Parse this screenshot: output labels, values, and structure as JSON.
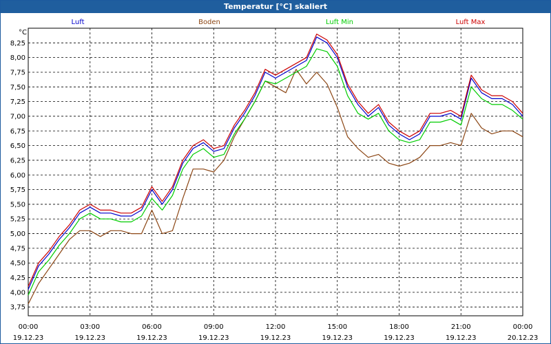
{
  "window": {
    "title": "Temperatur [°C] skaliert"
  },
  "chart_data": {
    "type": "line",
    "title": "Temperatur [°C] skaliert",
    "ylabel": "°C",
    "xlabel": "",
    "ylim": [
      3.6,
      8.5
    ],
    "xlim": [
      0,
      24
    ],
    "grid": true,
    "legend_position": "top",
    "y_ticks": [
      "3,75",
      "4,00",
      "4,25",
      "4,50",
      "4,75",
      "5,00",
      "5,25",
      "5,50",
      "5,75",
      "6,00",
      "6,25",
      "6,50",
      "6,75",
      "7,00",
      "7,25",
      "7,50",
      "7,75",
      "8,00",
      "8,25"
    ],
    "y_tick_values": [
      3.75,
      4.0,
      4.25,
      4.5,
      4.75,
      5.0,
      5.25,
      5.5,
      5.75,
      6.0,
      6.25,
      6.5,
      6.75,
      7.0,
      7.25,
      7.5,
      7.75,
      8.0,
      8.25
    ],
    "x_ticks": [
      {
        "time": "00:00",
        "date": "19.12.23",
        "hour": 0
      },
      {
        "time": "03:00",
        "date": "19.12.23",
        "hour": 3
      },
      {
        "time": "06:00",
        "date": "19.12.23",
        "hour": 6
      },
      {
        "time": "09:00",
        "date": "19.12.23",
        "hour": 9
      },
      {
        "time": "12:00",
        "date": "19.12.23",
        "hour": 12
      },
      {
        "time": "15:00",
        "date": "19.12.23",
        "hour": 15
      },
      {
        "time": "18:00",
        "date": "19.12.23",
        "hour": 18
      },
      {
        "time": "21:00",
        "date": "19.12.23",
        "hour": 21
      },
      {
        "time": "00:00",
        "date": "20.12.23",
        "hour": 24
      }
    ],
    "x": [
      0,
      0.5,
      1,
      1.5,
      2,
      2.5,
      3,
      3.5,
      4,
      4.5,
      5,
      5.5,
      6,
      6.5,
      7,
      7.5,
      8,
      8.5,
      9,
      9.5,
      10,
      10.5,
      11,
      11.5,
      12,
      12.5,
      13,
      13.5,
      14,
      14.5,
      15,
      15.5,
      16,
      16.5,
      17,
      17.5,
      18,
      18.5,
      19,
      19.5,
      20,
      20.5,
      21,
      21.5,
      22,
      22.5,
      23,
      23.5,
      24
    ],
    "series": [
      {
        "name": "Luft",
        "color": "#0000cc",
        "values": [
          4.05,
          4.45,
          4.65,
          4.9,
          5.1,
          5.35,
          5.45,
          5.35,
          5.35,
          5.3,
          5.3,
          5.4,
          5.75,
          5.5,
          5.75,
          6.2,
          6.45,
          6.55,
          6.4,
          6.45,
          6.8,
          7.05,
          7.35,
          7.75,
          7.65,
          7.75,
          7.85,
          7.95,
          8.35,
          8.25,
          8.0,
          7.5,
          7.2,
          7.0,
          7.15,
          6.85,
          6.7,
          6.6,
          6.7,
          7.0,
          7.0,
          7.05,
          6.95,
          7.65,
          7.4,
          7.3,
          7.3,
          7.2,
          7.0
        ]
      },
      {
        "name": "Boden",
        "color": "#8b4513",
        "values": [
          3.8,
          4.15,
          4.4,
          4.65,
          4.9,
          5.05,
          5.05,
          4.95,
          5.05,
          5.05,
          5.0,
          5.0,
          5.4,
          5.0,
          5.05,
          5.6,
          6.1,
          6.1,
          6.05,
          6.25,
          6.65,
          6.95,
          7.25,
          7.6,
          7.5,
          7.4,
          7.8,
          7.55,
          7.75,
          7.55,
          7.15,
          6.65,
          6.45,
          6.3,
          6.35,
          6.2,
          6.15,
          6.2,
          6.3,
          6.5,
          6.5,
          6.55,
          6.5,
          7.05,
          6.8,
          6.7,
          6.75,
          6.75,
          6.65
        ]
      },
      {
        "name": "Luft Min",
        "color": "#00cc00",
        "values": [
          3.95,
          4.35,
          4.55,
          4.8,
          5.0,
          5.25,
          5.35,
          5.25,
          5.25,
          5.2,
          5.2,
          5.3,
          5.6,
          5.4,
          5.65,
          6.1,
          6.35,
          6.45,
          6.3,
          6.35,
          6.7,
          6.95,
          7.25,
          7.6,
          7.55,
          7.65,
          7.75,
          7.85,
          8.15,
          8.1,
          7.85,
          7.35,
          7.05,
          6.95,
          7.05,
          6.75,
          6.6,
          6.55,
          6.6,
          6.9,
          6.9,
          6.95,
          6.85,
          7.5,
          7.3,
          7.2,
          7.2,
          7.1,
          6.95
        ]
      },
      {
        "name": "Luft Max",
        "color": "#cc0000",
        "values": [
          4.1,
          4.5,
          4.7,
          4.95,
          5.15,
          5.4,
          5.5,
          5.4,
          5.4,
          5.35,
          5.35,
          5.45,
          5.8,
          5.55,
          5.8,
          6.25,
          6.5,
          6.6,
          6.45,
          6.5,
          6.85,
          7.1,
          7.4,
          7.8,
          7.7,
          7.8,
          7.9,
          8.0,
          8.4,
          8.3,
          8.05,
          7.55,
          7.25,
          7.05,
          7.2,
          6.9,
          6.75,
          6.65,
          6.75,
          7.05,
          7.05,
          7.1,
          7.0,
          7.7,
          7.45,
          7.35,
          7.35,
          7.25,
          7.05
        ]
      }
    ]
  }
}
